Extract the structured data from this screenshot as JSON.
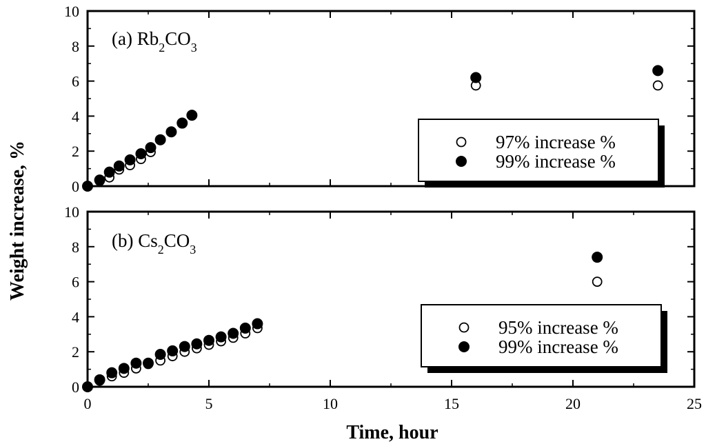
{
  "chart_data": [
    {
      "type": "scatter",
      "panel_label": "(b) Cs",
      "panel_label_sub1": "2",
      "panel_label_mid": "CO",
      "panel_label_sub2": "3",
      "xlim": [
        0,
        25
      ],
      "ylim": [
        0,
        10
      ],
      "xticks": [
        0,
        5,
        10,
        15,
        20,
        25
      ],
      "yticks": [
        0,
        2,
        4,
        6,
        8,
        10
      ],
      "legend_position": "bottom-right",
      "series": [
        {
          "name": "95% increase %",
          "marker": "open-circle",
          "x": [
            0,
            0.5,
            1,
            1.5,
            2,
            2.5,
            3,
            3.5,
            4,
            4.5,
            5,
            5.5,
            6,
            6.5,
            7,
            21
          ],
          "y": [
            0,
            0.35,
            0.6,
            0.8,
            1.05,
            1.3,
            1.5,
            1.75,
            2.0,
            2.2,
            2.4,
            2.6,
            2.8,
            3.05,
            3.35,
            6.0
          ]
        },
        {
          "name": "99% increase %",
          "marker": "filled-circle",
          "x": [
            0,
            0.5,
            1,
            1.5,
            2,
            2.5,
            3,
            3.5,
            4,
            4.5,
            5,
            5.5,
            6,
            6.5,
            7,
            21
          ],
          "y": [
            0,
            0.4,
            0.8,
            1.05,
            1.35,
            1.35,
            1.85,
            2.05,
            2.3,
            2.45,
            2.65,
            2.85,
            3.05,
            3.35,
            3.6,
            7.4
          ]
        }
      ]
    },
    {
      "type": "scatter",
      "panel_label": "(a) Rb",
      "panel_label_sub1": "2",
      "panel_label_mid": "CO",
      "panel_label_sub2": "3",
      "xlim": [
        0,
        25
      ],
      "ylim": [
        0,
        10
      ],
      "xticks": [
        0,
        5,
        10,
        15,
        20,
        25
      ],
      "yticks": [
        0,
        2,
        4,
        6,
        8,
        10
      ],
      "legend_position": "bottom-right",
      "series": [
        {
          "name": "97% increase %",
          "marker": "open-circle",
          "x": [
            0,
            0.5,
            0.9,
            1.3,
            1.75,
            2.2,
            2.6,
            16,
            23.5
          ],
          "y": [
            0,
            0.3,
            0.5,
            0.95,
            1.2,
            1.55,
            1.95,
            5.75,
            5.75
          ]
        },
        {
          "name": "99% increase %",
          "marker": "filled-circle",
          "x": [
            0,
            0.5,
            0.9,
            1.3,
            1.75,
            2.2,
            2.6,
            3.0,
            3.45,
            3.9,
            4.3,
            16,
            23.5
          ],
          "y": [
            0,
            0.35,
            0.8,
            1.15,
            1.5,
            1.85,
            2.2,
            2.65,
            3.1,
            3.6,
            4.05,
            6.2,
            6.6
          ]
        }
      ]
    }
  ],
  "axes": {
    "xlabel": "Time, hour",
    "ylabel": "Weight increase, %"
  }
}
